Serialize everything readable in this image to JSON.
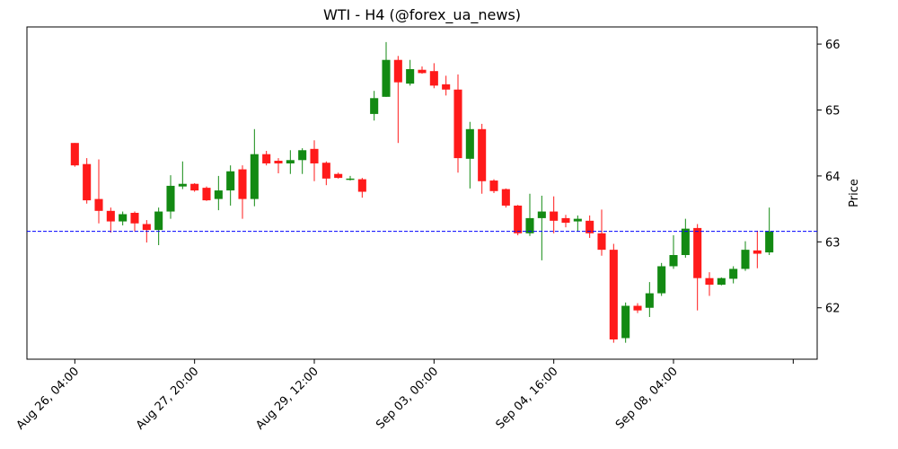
{
  "chart_data": {
    "type": "candlestick",
    "title": "WTI - H4 (@forex_ua_news)",
    "y_label": "Price",
    "x": [
      0,
      1,
      2,
      3,
      4,
      5,
      6,
      7,
      8,
      9,
      10,
      11,
      12,
      13,
      14,
      15,
      16,
      17,
      18,
      19,
      20,
      21,
      22,
      23,
      24,
      25,
      26,
      27,
      28,
      29,
      30,
      31,
      32,
      33,
      34,
      35,
      36,
      37,
      38,
      39,
      40,
      41,
      42,
      43,
      44,
      45,
      46,
      47,
      48,
      49,
      50,
      51,
      52,
      53,
      54,
      55,
      56,
      57,
      58
    ],
    "open": [
      64.5,
      64.18,
      63.65,
      63.47,
      63.31,
      63.44,
      63.27,
      63.18,
      63.46,
      63.84,
      63.88,
      63.82,
      63.65,
      63.78,
      64.1,
      63.65,
      64.33,
      64.23,
      64.19,
      64.24,
      64.41,
      64.2,
      64.03,
      63.94,
      63.95,
      64.94,
      65.2,
      65.76,
      65.4,
      65.61,
      65.59,
      65.39,
      65.31,
      64.26,
      64.71,
      63.93,
      63.8,
      63.55,
      63.13,
      63.36,
      63.46,
      63.36,
      63.31,
      63.32,
      63.13,
      62.88,
      61.54,
      62.03,
      62.0,
      62.22,
      62.63,
      62.8,
      63.21,
      62.45,
      62.35,
      62.44,
      62.59,
      62.87,
      62.84
    ],
    "high": [
      64.5,
      64.27,
      64.25,
      63.52,
      63.46,
      63.46,
      63.33,
      63.52,
      64.01,
      64.22,
      63.89,
      63.84,
      64.0,
      64.16,
      64.16,
      64.71,
      64.38,
      64.27,
      64.39,
      64.42,
      64.54,
      64.22,
      64.05,
      64.0,
      63.97,
      65.29,
      66.03,
      65.82,
      65.76,
      65.66,
      65.71,
      65.52,
      65.54,
      64.82,
      64.79,
      63.95,
      63.81,
      63.56,
      63.73,
      63.7,
      63.69,
      63.41,
      63.4,
      63.4,
      63.49,
      62.97,
      62.08,
      62.07,
      62.39,
      62.68,
      63.1,
      63.35,
      63.27,
      62.54,
      62.46,
      62.63,
      63.01,
      63.17,
      63.52
    ],
    "low": [
      64.14,
      63.58,
      63.28,
      63.14,
      63.25,
      63.16,
      62.99,
      62.95,
      63.35,
      63.8,
      63.76,
      63.62,
      63.48,
      63.55,
      63.35,
      63.54,
      64.16,
      64.04,
      64.03,
      64.03,
      63.92,
      63.86,
      63.96,
      63.93,
      63.67,
      64.84,
      65.2,
      64.5,
      65.37,
      65.55,
      65.33,
      65.22,
      64.05,
      63.81,
      63.73,
      63.74,
      63.52,
      63.1,
      63.09,
      62.72,
      63.13,
      63.22,
      63.16,
      63.06,
      62.79,
      61.47,
      61.47,
      61.92,
      61.86,
      62.18,
      62.59,
      62.76,
      61.96,
      62.18,
      62.34,
      62.37,
      62.56,
      62.6,
      62.8
    ],
    "close": [
      64.16,
      63.63,
      63.47,
      63.31,
      63.42,
      63.28,
      63.18,
      63.46,
      63.85,
      63.88,
      63.78,
      63.63,
      63.78,
      64.07,
      63.65,
      64.33,
      64.19,
      64.19,
      64.24,
      64.39,
      64.19,
      63.96,
      63.97,
      63.96,
      63.76,
      65.18,
      65.76,
      65.42,
      65.62,
      65.56,
      65.37,
      65.31,
      64.27,
      64.71,
      63.92,
      63.77,
      63.55,
      63.13,
      63.36,
      63.46,
      63.32,
      63.29,
      63.35,
      63.13,
      62.88,
      61.52,
      62.03,
      61.96,
      62.22,
      62.63,
      62.8,
      63.2,
      62.45,
      62.35,
      62.45,
      62.59,
      62.88,
      62.82,
      63.16
    ],
    "up_color": "#138a13",
    "down_color": "#ff1a1a",
    "hline": 63.16,
    "hline_color": "#0000ff",
    "xlim": [
      -4,
      62
    ],
    "xticks": [
      {
        "value": 0,
        "label": "Aug 26, 04:00"
      },
      {
        "value": 10,
        "label": "Aug 27, 20:00"
      },
      {
        "value": 20,
        "label": "Aug 29, 12:00"
      },
      {
        "value": 30,
        "label": "Sep 03, 00:00"
      },
      {
        "value": 40,
        "label": "Sep 04, 16:00"
      },
      {
        "value": 50,
        "label": "Sep 08, 04:00"
      },
      {
        "value": 60,
        "label": null
      }
    ],
    "ylim": [
      61.22,
      66.26
    ],
    "yticks": [
      62,
      63,
      64,
      65,
      66
    ],
    "y_axis_side": "right",
    "grid": false
  }
}
